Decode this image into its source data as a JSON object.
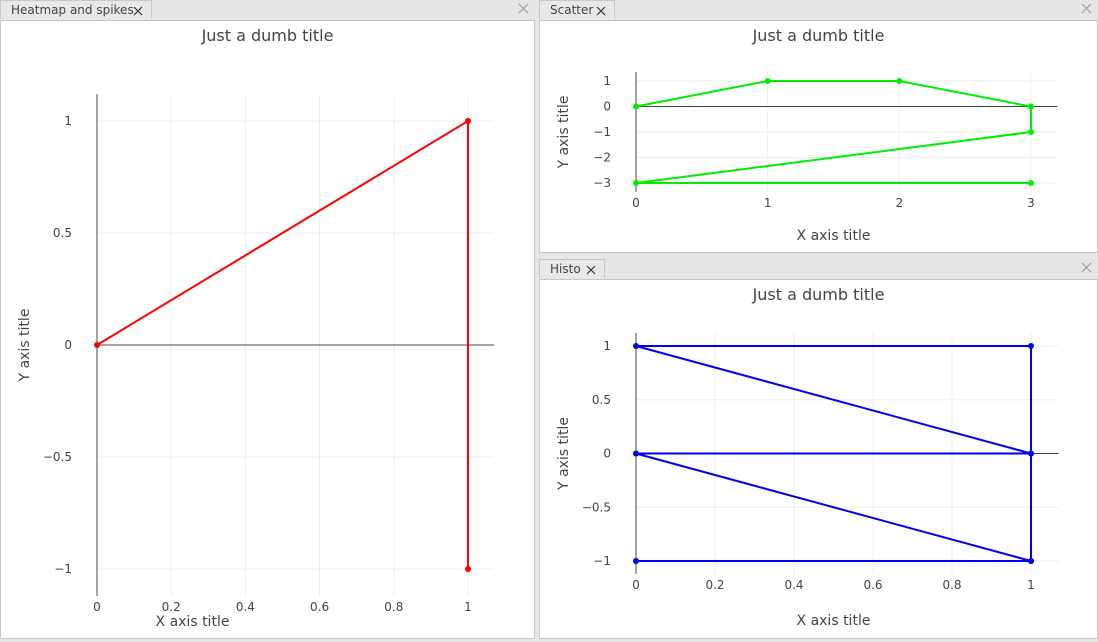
{
  "panels": [
    {
      "id": "heatmap",
      "tab_label": "Heatmap and spikes",
      "color": "#ff0000",
      "chart_data": {
        "type": "line",
        "title": "Just a dumb title",
        "xlabel": "X axis title",
        "ylabel": "Y axis title",
        "xlim": [
          0,
          1.07
        ],
        "ylim": [
          -1.12,
          1.12
        ],
        "xticks": [
          0,
          0.2,
          0.4,
          0.6,
          0.8,
          1
        ],
        "xtick_labels": [
          "0",
          "0.2",
          "0.4",
          "0.6",
          "0.8",
          "1"
        ],
        "yticks": [
          1,
          0.5,
          0,
          -0.5,
          -1
        ],
        "ytick_labels": [
          "1",
          "0.5",
          "0",
          "−0.5",
          "−1"
        ],
        "grid": true,
        "series": [
          {
            "x": [
              0,
              1,
              1
            ],
            "y": [
              0,
              1,
              -1
            ]
          }
        ]
      }
    },
    {
      "id": "scatter",
      "tab_label": "Scatter",
      "color": "#00ee00",
      "chart_data": {
        "type": "line",
        "title": "Just a dumb title",
        "xlabel": "X axis title",
        "ylabel": "Y axis title",
        "xlim": [
          0,
          3.2
        ],
        "ylim": [
          -3.35,
          1.35
        ],
        "xticks": [
          0,
          1,
          2,
          3
        ],
        "xtick_labels": [
          "0",
          "1",
          "2",
          "3"
        ],
        "yticks": [
          1,
          0,
          -1,
          -2,
          -3
        ],
        "ytick_labels": [
          "1",
          "0",
          "−1",
          "−2",
          "−3"
        ],
        "grid": true,
        "series": [
          {
            "x": [
              0,
              1,
              2,
              3,
              3,
              0,
              3
            ],
            "y": [
              0,
              1,
              1,
              0,
              -1,
              -3,
              -3
            ]
          }
        ]
      }
    },
    {
      "id": "histo",
      "tab_label": "Histo",
      "color": "#0000ee",
      "chart_data": {
        "type": "line",
        "title": "Just a dumb title",
        "xlabel": "X axis title",
        "ylabel": "Y axis title",
        "xlim": [
          0,
          1.07
        ],
        "ylim": [
          -1.12,
          1.12
        ],
        "xticks": [
          0,
          0.2,
          0.4,
          0.6,
          0.8,
          1
        ],
        "xtick_labels": [
          "0",
          "0.2",
          "0.4",
          "0.6",
          "0.8",
          "1"
        ],
        "yticks": [
          1,
          0.5,
          0,
          -0.5,
          -1
        ],
        "ytick_labels": [
          "1",
          "0.5",
          "0",
          "−0.5",
          "−1"
        ],
        "grid": true,
        "series": [
          {
            "x": [
              0,
              1,
              0,
              1,
              0,
              1,
              1,
              1
            ],
            "y": [
              -1,
              -1,
              0,
              0,
              1,
              1,
              0,
              -1
            ]
          }
        ]
      }
    }
  ]
}
